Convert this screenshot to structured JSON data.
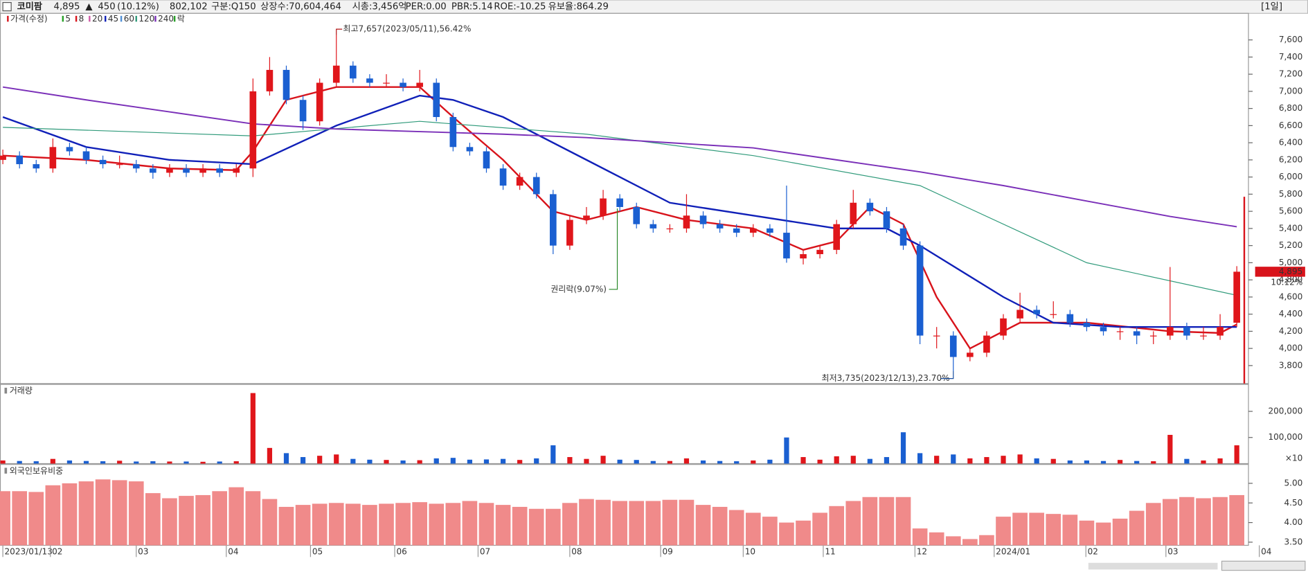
{
  "header": {
    "name": "코미팜",
    "price": "4,895",
    "arrow": "▲",
    "change": "450",
    "change_pct": "(10.12%)",
    "volume": "802,102",
    "fields": [
      "구분:Q150",
      "상장수:70,604,464",
      "시총:3,456억",
      "PER:0.00",
      "PBR:5.14",
      "ROE:-10.25",
      "유보율:864.29"
    ],
    "period": "[1일]"
  },
  "chart_data": [
    {
      "type": "candlestick",
      "legend": [
        {
          "name": "가격(수정)",
          "color": "#d8131b"
        },
        {
          "name": "5",
          "color": "#27a027"
        },
        {
          "name": "8",
          "color": "#d8131b"
        },
        {
          "name": "20",
          "color": "#d05aa6"
        },
        {
          "name": "45",
          "color": "#1020b8"
        },
        {
          "name": "60",
          "color": "#4f8fd6"
        },
        {
          "name": "120",
          "color": "#2f9a7a"
        },
        {
          "name": "240",
          "color": "#7a2fb8"
        },
        {
          "name": "락",
          "color": "#27a027"
        }
      ],
      "up_color": "#e0161b",
      "down_color": "#1a5fd1",
      "open": [
        6200,
        6250,
        6150,
        6100,
        6350,
        6300,
        6200,
        6150,
        6150,
        6100,
        6050,
        6100,
        6050,
        6100,
        6050,
        6100,
        7000,
        7250,
        6900,
        6650,
        7100,
        7300,
        7150,
        7100,
        7100,
        7050,
        7100,
        6700,
        6350,
        6300,
        6100,
        5900,
        6000,
        5800,
        5200,
        5500,
        5550,
        5750,
        5650,
        5450,
        5400,
        5400,
        5550,
        5450,
        5400,
        5350,
        5400,
        5350,
        5050,
        5100,
        5150,
        5450,
        5700,
        5600,
        5400,
        5200,
        4150,
        4150,
        3900,
        3950,
        4150,
        4350,
        4450,
        4400,
        4400,
        4300,
        4250,
        4200,
        4200,
        4150,
        4150,
        4250,
        4150,
        4150,
        4300
      ],
      "high": [
        6320,
        6300,
        6200,
        6450,
        6400,
        6350,
        6250,
        6250,
        6200,
        6150,
        6150,
        6150,
        6150,
        6150,
        6150,
        7150,
        7400,
        7300,
        6950,
        7150,
        7657,
        7350,
        7200,
        7200,
        7150,
        7250,
        7150,
        6750,
        6400,
        6350,
        6150,
        6050,
        6050,
        5850,
        5550,
        5650,
        5850,
        5800,
        5700,
        5500,
        5450,
        5800,
        5600,
        5500,
        5450,
        5450,
        5450,
        5900,
        5150,
        5200,
        5500,
        5850,
        5750,
        5650,
        5450,
        5250,
        4250,
        4200,
        4000,
        4200,
        4400,
        4650,
        4500,
        4550,
        4450,
        4350,
        4300,
        4250,
        4250,
        4200,
        4950,
        4300,
        4250,
        4400,
        4960
      ],
      "low": [
        6150,
        6100,
        6050,
        6050,
        6250,
        6150,
        6100,
        6100,
        6050,
        5980,
        6000,
        6000,
        6000,
        6000,
        6000,
        6000,
        6950,
        6850,
        6550,
        6600,
        7050,
        7100,
        7050,
        7050,
        7000,
        7000,
        6650,
        6300,
        6250,
        6050,
        5850,
        5850,
        5750,
        5100,
        5150,
        5450,
        5500,
        5600,
        5400,
        5350,
        5350,
        5350,
        5400,
        5350,
        5300,
        5300,
        5300,
        5000,
        4980,
        5050,
        5100,
        5400,
        5550,
        5350,
        5150,
        4050,
        4000,
        3735,
        3850,
        3900,
        4100,
        4300,
        4350,
        4350,
        4250,
        4200,
        4150,
        4100,
        4050,
        4050,
        4100,
        4100,
        4100,
        4100,
        4250
      ],
      "close": [
        6250,
        6150,
        6100,
        6350,
        6300,
        6200,
        6150,
        6150,
        6100,
        6050,
        6100,
        6050,
        6100,
        6050,
        6100,
        7000,
        7250,
        6900,
        6650,
        7100,
        7300,
        7150,
        7100,
        7100,
        7050,
        7100,
        6700,
        6350,
        6300,
        6100,
        5900,
        6000,
        5800,
        5200,
        5500,
        5550,
        5750,
        5650,
        5450,
        5400,
        5400,
        5550,
        5450,
        5400,
        5350,
        5400,
        5350,
        5050,
        5100,
        5150,
        5450,
        5700,
        5600,
        5400,
        5200,
        4150,
        4150,
        3900,
        3950,
        4150,
        4350,
        4450,
        4400,
        4400,
        4300,
        4250,
        4200,
        4200,
        4150,
        4150,
        4250,
        4150,
        4150,
        4250,
        4895
      ],
      "series": [
        {
          "name": "8",
          "width": 2,
          "x": [
            0,
            5,
            10,
            14,
            15,
            17,
            20,
            25,
            27,
            30,
            33,
            35,
            38,
            41,
            45,
            48,
            50,
            52,
            54,
            56,
            58,
            61,
            65,
            70,
            73,
            74
          ],
          "values": [
            6250,
            6200,
            6100,
            6080,
            6300,
            6900,
            7050,
            7050,
            6700,
            6200,
            5600,
            5500,
            5650,
            5500,
            5400,
            5150,
            5250,
            5650,
            5450,
            4600,
            4000,
            4300,
            4300,
            4200,
            4180,
            4280
          ]
        },
        {
          "name": "45",
          "width": 2,
          "x": [
            0,
            5,
            10,
            15,
            20,
            25,
            27,
            30,
            35,
            40,
            45,
            50,
            53,
            55,
            60,
            63,
            67,
            74
          ],
          "values": [
            6700,
            6350,
            6200,
            6150,
            6600,
            6950,
            6900,
            6700,
            6200,
            5700,
            5550,
            5400,
            5400,
            5200,
            4600,
            4300,
            4250,
            4250
          ]
        },
        {
          "name": "120",
          "width": 1,
          "x": [
            0,
            15,
            25,
            35,
            45,
            55,
            65,
            74
          ],
          "values": [
            6580,
            6480,
            6650,
            6500,
            6250,
            5900,
            5000,
            4620
          ]
        },
        {
          "name": "240",
          "width": 1.6,
          "x": [
            0,
            5,
            10,
            15,
            20,
            25,
            30,
            35,
            40,
            45,
            50,
            55,
            60,
            65,
            70,
            74
          ],
          "values": [
            7050,
            6900,
            6760,
            6620,
            6560,
            6530,
            6500,
            6460,
            6400,
            6340,
            6200,
            6060,
            5900,
            5720,
            5540,
            5420
          ]
        }
      ],
      "ylim": [
        3590,
        7910
      ],
      "yticks": [
        {
          "value": 3800,
          "label": "3,800"
        },
        {
          "value": 4000,
          "label": "4,000"
        },
        {
          "value": 4200,
          "label": "4,200"
        },
        {
          "value": 4400,
          "label": "4,400"
        },
        {
          "value": 4600,
          "label": "4,600"
        },
        {
          "value": 4800,
          "label": "4,800"
        },
        {
          "value": 5000,
          "label": "5,000"
        },
        {
          "value": 5200,
          "label": "5,200"
        },
        {
          "value": 5400,
          "label": "5,400"
        },
        {
          "value": 5600,
          "label": "5,600"
        },
        {
          "value": 5800,
          "label": "5,800"
        },
        {
          "value": 6000,
          "label": "6,000"
        },
        {
          "value": 6200,
          "label": "6,200"
        },
        {
          "value": 6400,
          "label": "6,400"
        },
        {
          "value": 6600,
          "label": "6,600"
        },
        {
          "value": 6800,
          "label": "6,800"
        },
        {
          "value": 7000,
          "label": "7,000"
        },
        {
          "value": 7200,
          "label": "7,200"
        },
        {
          "value": 7400,
          "label": "7,400"
        },
        {
          "value": 7600,
          "label": "7,600"
        }
      ],
      "xticks": [
        {
          "value": 0,
          "label": "2023/01/13"
        },
        {
          "value": 2.85,
          "label": "02"
        },
        {
          "value": 8,
          "label": "03"
        },
        {
          "value": 13.4,
          "label": "04"
        },
        {
          "value": 18.45,
          "label": "05"
        },
        {
          "value": 23.5,
          "label": "06"
        },
        {
          "value": 28.5,
          "label": "07"
        },
        {
          "value": 34,
          "label": "08"
        },
        {
          "value": 39.45,
          "label": "09"
        },
        {
          "value": 44.4,
          "label": "10"
        },
        {
          "value": 49.2,
          "label": "11"
        },
        {
          "value": 54.7,
          "label": "12"
        },
        {
          "value": 59.45,
          "label": "2024/01"
        },
        {
          "value": 64.95,
          "label": "02"
        },
        {
          "value": 69.75,
          "label": "03"
        },
        {
          "value": 75.35,
          "label": "04"
        }
      ],
      "annotations": {
        "high": "최고7,657(2023/05/11),56.42%",
        "ex_rights": "권리락(9.07%)",
        "low": "최저3,735(2023/12/13),23.70%"
      },
      "last_price": {
        "value": 4895,
        "label": "4,895",
        "pct": "10.12%"
      }
    },
    {
      "type": "bar",
      "title": "거래량",
      "unit_label": "×10",
      "values": [
        12000,
        10000,
        9000,
        18000,
        12000,
        10000,
        9000,
        11000,
        8000,
        9000,
        8000,
        8000,
        7000,
        8000,
        9000,
        270000,
        60000,
        40000,
        25000,
        30000,
        35000,
        18000,
        15000,
        14000,
        12000,
        13000,
        20000,
        22000,
        15000,
        16000,
        18000,
        14000,
        20000,
        70000,
        25000,
        18000,
        30000,
        15000,
        14000,
        10000,
        10000,
        20000,
        12000,
        10000,
        9000,
        12000,
        15000,
        100000,
        25000,
        15000,
        28000,
        30000,
        18000,
        25000,
        120000,
        40000,
        30000,
        35000,
        20000,
        25000,
        30000,
        35000,
        20000,
        18000,
        12000,
        12000,
        10000,
        14000,
        10000,
        9000,
        110000,
        18000,
        12000,
        20000,
        70000
      ],
      "ylim": [
        0,
        300000
      ],
      "yticks": [
        {
          "value": 100000,
          "label": "100,000"
        },
        {
          "value": 200000,
          "label": "200,000"
        }
      ]
    },
    {
      "type": "bar",
      "title": "외국인보유비중",
      "color": "#f08a8a",
      "values": [
        4.8,
        4.8,
        4.78,
        4.95,
        5.0,
        5.05,
        5.1,
        5.08,
        5.05,
        4.75,
        4.62,
        4.68,
        4.7,
        4.8,
        4.9,
        4.8,
        4.6,
        4.4,
        4.45,
        4.48,
        4.5,
        4.48,
        4.45,
        4.48,
        4.5,
        4.52,
        4.48,
        4.5,
        4.55,
        4.5,
        4.45,
        4.4,
        4.35,
        4.35,
        4.5,
        4.6,
        4.58,
        4.55,
        4.55,
        4.55,
        4.58,
        4.58,
        4.45,
        4.4,
        4.32,
        4.25,
        4.15,
        4.0,
        4.05,
        4.25,
        4.42,
        4.55,
        4.65,
        4.65,
        4.65,
        3.85,
        3.75,
        3.65,
        3.58,
        3.68,
        4.15,
        4.25,
        4.25,
        4.22,
        4.2,
        4.05,
        4.0,
        4.1,
        4.3,
        4.5,
        4.6,
        4.65,
        4.62,
        4.65,
        4.7
      ],
      "ylim": [
        3.42,
        5.46
      ],
      "yticks": [
        {
          "value": 3.5,
          "label": "3.50"
        },
        {
          "value": 4,
          "label": "4.00"
        },
        {
          "value": 4.5,
          "label": "4.50"
        },
        {
          "value": 5,
          "label": "5.00"
        }
      ]
    }
  ]
}
